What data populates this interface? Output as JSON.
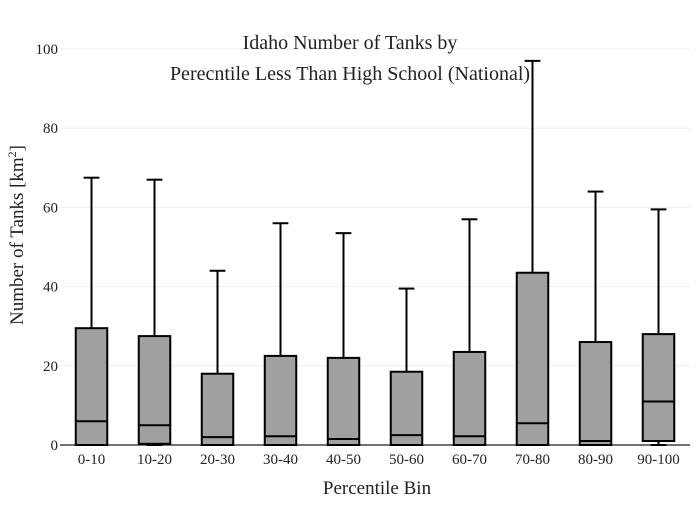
{
  "chart_data": {
    "type": "box",
    "title": [
      "Idaho Number of Tanks by",
      "Perecntile Less Than High School (National)"
    ],
    "xlabel": "Percentile Bin",
    "ylabel_main": "Number of Tanks  [km",
    "ylabel_sup": "2",
    "ylabel_close": "]",
    "ylim": [
      0,
      100
    ],
    "yticks": [
      0,
      20,
      40,
      60,
      80,
      100
    ],
    "grid": true,
    "colors": {
      "box_fill": "#a0a0a0",
      "box_line": "#000000",
      "grid": "#eeeeee"
    },
    "categories": [
      "0-10",
      "10-20",
      "20-30",
      "30-40",
      "40-50",
      "50-60",
      "60-70",
      "70-80",
      "80-90",
      "90-100"
    ],
    "boxes": [
      {
        "min": 0,
        "q1": 0,
        "median": 6,
        "q3": 29.5,
        "max": 67.5
      },
      {
        "min": 0,
        "q1": 0.3,
        "median": 5,
        "q3": 27.5,
        "max": 67
      },
      {
        "min": 0,
        "q1": 0,
        "median": 2,
        "q3": 18,
        "max": 44
      },
      {
        "min": 0,
        "q1": 0,
        "median": 2.2,
        "q3": 22.5,
        "max": 56
      },
      {
        "min": 0,
        "q1": 0,
        "median": 1.5,
        "q3": 22,
        "max": 53.5
      },
      {
        "min": 0,
        "q1": 0,
        "median": 2.5,
        "q3": 18.5,
        "max": 39.5
      },
      {
        "min": 0,
        "q1": 0,
        "median": 2.2,
        "q3": 23.5,
        "max": 57
      },
      {
        "min": 0,
        "q1": 0,
        "median": 5.5,
        "q3": 43.5,
        "max": 97
      },
      {
        "min": 0,
        "q1": 0,
        "median": 1,
        "q3": 26,
        "max": 64
      },
      {
        "min": 0,
        "q1": 1,
        "median": 11,
        "q3": 28,
        "max": 59.5
      }
    ]
  }
}
